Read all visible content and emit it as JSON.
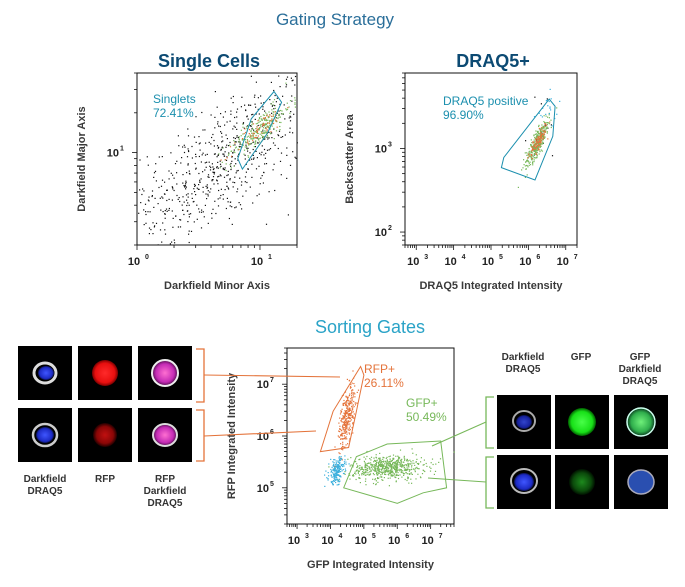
{
  "figure": {
    "title": "Gating Strategy",
    "sorting_title": "Sorting Gates"
  },
  "colors": {
    "title": "#2b6f9a",
    "subtitle": "#0c4a73",
    "sorting": "#2aa3c7",
    "gate_blue": "#1b8fae",
    "rfp": "#e4733a",
    "gfp": "#77b85a",
    "points_black": "#111111",
    "points_cyan": "#3db0dd"
  },
  "chart_data": [
    {
      "type": "scatter",
      "title": "Single Cells",
      "xlabel": "Darkfield Minor Axis",
      "ylabel": "Darkfield Major Axis",
      "xscale": "log",
      "yscale": "log",
      "xlim": [
        1,
        20
      ],
      "ylim": [
        2,
        40
      ],
      "x_ticks": [
        {
          "base": "10",
          "exp": "0",
          "value": 1
        },
        {
          "base": "10",
          "exp": "1",
          "value": 10
        }
      ],
      "y_ticks": [
        {
          "base": "10",
          "exp": "1",
          "value": 10
        }
      ],
      "gates": [
        {
          "name": "Singlets",
          "percent": "72.41%",
          "color": "#1b8fae",
          "polygon": [
            [
              7.2,
              7.5
            ],
            [
              11.5,
              14
            ],
            [
              15,
              24
            ],
            [
              13,
              29
            ],
            [
              8.5,
              18
            ],
            [
              6.6,
              9
            ]
          ]
        }
      ],
      "populations": [
        {
          "color": "#111111",
          "count": 700,
          "center": [
            4.8,
            8.2
          ],
          "spread": [
            0.4,
            0.32
          ],
          "corr": 0.7
        },
        {
          "color": "#77b85a",
          "count": 260,
          "center": [
            9.8,
            15
          ],
          "spread": [
            0.13,
            0.11
          ],
          "corr": 0.85
        },
        {
          "color": "#e4733a",
          "count": 70,
          "center": [
            9.8,
            15
          ],
          "spread": [
            0.1,
            0.09
          ],
          "corr": 0.85
        }
      ]
    },
    {
      "type": "scatter",
      "title": "DRAQ5+",
      "xlabel": "DRAQ5 Integrated Intensity",
      "ylabel": "Backscatter Area",
      "xscale": "log",
      "yscale": "log",
      "xlim": [
        500,
        20000000
      ],
      "ylim": [
        70,
        8000
      ],
      "x_ticks": [
        {
          "base": "10",
          "exp": "3",
          "value": 1000
        },
        {
          "base": "10",
          "exp": "4",
          "value": 10000
        },
        {
          "base": "10",
          "exp": "5",
          "value": 100000
        },
        {
          "base": "10",
          "exp": "6",
          "value": 1000000
        },
        {
          "base": "10",
          "exp": "7",
          "value": 10000000
        }
      ],
      "y_ticks": [
        {
          "base": "10",
          "exp": "2",
          "value": 100
        },
        {
          "base": "10",
          "exp": "3",
          "value": 1000
        }
      ],
      "gates": [
        {
          "name": "DRAQ5 positive",
          "percent": "96.90%",
          "color": "#1b8fae",
          "polygon": [
            [
              190000,
              590
            ],
            [
              1500000,
              420
            ],
            [
              4500000,
              1400
            ],
            [
              5200000,
              3200
            ],
            [
              3600000,
              3900
            ],
            [
              220000,
              780
            ]
          ]
        }
      ],
      "populations": [
        {
          "color": "#111111",
          "count": 12,
          "center": [
            2000000,
            1500
          ],
          "spread": [
            0.3,
            0.3
          ],
          "corr": 0.5
        },
        {
          "color": "#77b85a",
          "count": 330,
          "center": [
            1700000,
            1200
          ],
          "spread": [
            0.16,
            0.14
          ],
          "corr": 0.85
        },
        {
          "color": "#e4733a",
          "count": 110,
          "center": [
            1800000,
            1250
          ],
          "spread": [
            0.12,
            0.1
          ],
          "corr": 0.85
        },
        {
          "color": "#3db0dd",
          "count": 20,
          "center": [
            3000000,
            2800
          ],
          "spread": [
            0.15,
            0.1
          ],
          "corr": 0.4
        }
      ]
    },
    {
      "type": "scatter",
      "title": "",
      "xlabel": "GFP Integrated Intensity",
      "ylabel": "RFP Integrated Intensity",
      "xscale": "log",
      "yscale": "log",
      "xlim": [
        500,
        50000000
      ],
      "ylim": [
        20000,
        50000000
      ],
      "x_ticks": [
        {
          "base": "10",
          "exp": "3",
          "value": 1000
        },
        {
          "base": "10",
          "exp": "4",
          "value": 10000
        },
        {
          "base": "10",
          "exp": "5",
          "value": 100000
        },
        {
          "base": "10",
          "exp": "6",
          "value": 1000000
        },
        {
          "base": "10",
          "exp": "7",
          "value": 10000000
        }
      ],
      "y_ticks": [
        {
          "base": "10",
          "exp": "5",
          "value": 100000
        },
        {
          "base": "10",
          "exp": "6",
          "value": 1000000
        },
        {
          "base": "10",
          "exp": "7",
          "value": 10000000
        }
      ],
      "gates": [
        {
          "name": "RFP+",
          "percent": "26.11%",
          "color": "#e4733a",
          "polygon": [
            [
              5000,
              500000
            ],
            [
              12000,
              3000000
            ],
            [
              80000,
              22000000
            ],
            [
              100000,
              15000000
            ],
            [
              60000,
              3000000
            ],
            [
              35000,
              600000
            ]
          ]
        },
        {
          "name": "GFP+",
          "percent": "50.49%",
          "color": "#77b85a",
          "polygon": [
            [
              25000,
              100000
            ],
            [
              60000,
              400000
            ],
            [
              500000,
              700000
            ],
            [
              20000000,
              800000
            ],
            [
              30000000,
              100000
            ],
            [
              6000000,
              80000
            ],
            [
              1000000,
              50000
            ]
          ]
        }
      ],
      "populations": [
        {
          "color": "#e4733a",
          "count": 320,
          "center": [
            30000,
            2500000
          ],
          "spread": [
            0.12,
            0.3
          ],
          "corr": 0.6
        },
        {
          "color": "#77b85a",
          "count": 620,
          "center": [
            500000,
            250000
          ],
          "spread": [
            0.55,
            0.12
          ],
          "corr": 0.1
        },
        {
          "color": "#3db0dd",
          "count": 200,
          "center": [
            15000,
            220000
          ],
          "spread": [
            0.12,
            0.12
          ],
          "corr": 0.3
        }
      ]
    }
  ],
  "thumbnails": {
    "left_labels": {
      "darkfield_draq5": "Darkfield\nDRAQ5",
      "rfp": "RFP",
      "rfp_darkfield_draq5": "RFP\nDarkfield\nDRAQ5"
    },
    "right_labels": {
      "darkfield_draq5": "Darkfield\nDRAQ5",
      "gfp": "GFP",
      "gfp_darkfield_draq5": "GFP\nDarkfield\nDRAQ5"
    }
  }
}
